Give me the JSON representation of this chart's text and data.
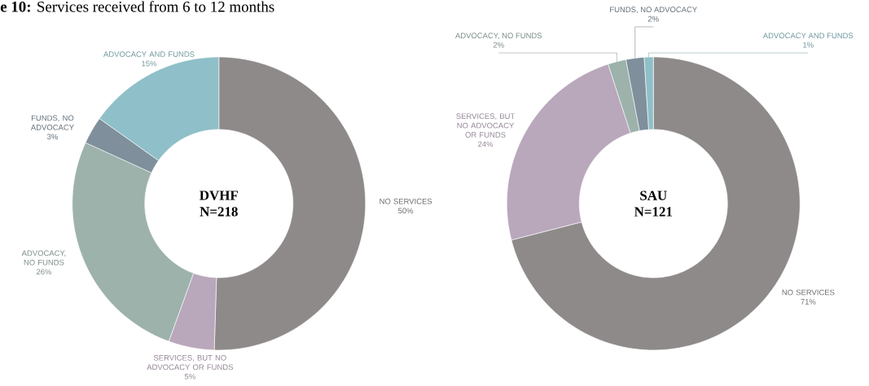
{
  "chart_data": [
    {
      "type": "donut",
      "title": "DVHF",
      "subtitle": "N=218",
      "annotations": [
        "**e 10:** Services received from 6 to 12 months"
      ],
      "categories": [
        "NO SERVICES",
        "SERVICES, BUT NO ADVOCACY OR FUNDS",
        "ADVOCACY, NO FUNDS",
        "FUNDS, NO ADVOCACY",
        "ADVOCACY AND FUNDS"
      ],
      "values": [
        50,
        5,
        26,
        3,
        15
      ],
      "value_labels": [
        "50%",
        "5%",
        "26%",
        "3%",
        "15%"
      ],
      "colors": [
        "#8e8a8a",
        "#b9a7bb",
        "#9cb2aa",
        "#7f8f9c",
        "#8fbfc8"
      ]
    },
    {
      "type": "donut",
      "title": "SAU",
      "subtitle": "N=121",
      "categories": [
        "NO SERVICES",
        "SERVICES, BUT NO ADVOCACY OR FUNDS",
        "ADVOCACY, NO FUNDS",
        "FUNDS, NO ADVOCACY",
        "ADVOCACY AND FUNDS"
      ],
      "values": [
        71,
        24,
        2,
        2,
        1
      ],
      "value_labels": [
        "71%",
        "24%",
        "2%",
        "2%",
        "1%"
      ],
      "colors": [
        "#8e8a8a",
        "#b9a7bb",
        "#9cb2aa",
        "#7f8f9c",
        "#8fbfc8"
      ]
    }
  ]
}
